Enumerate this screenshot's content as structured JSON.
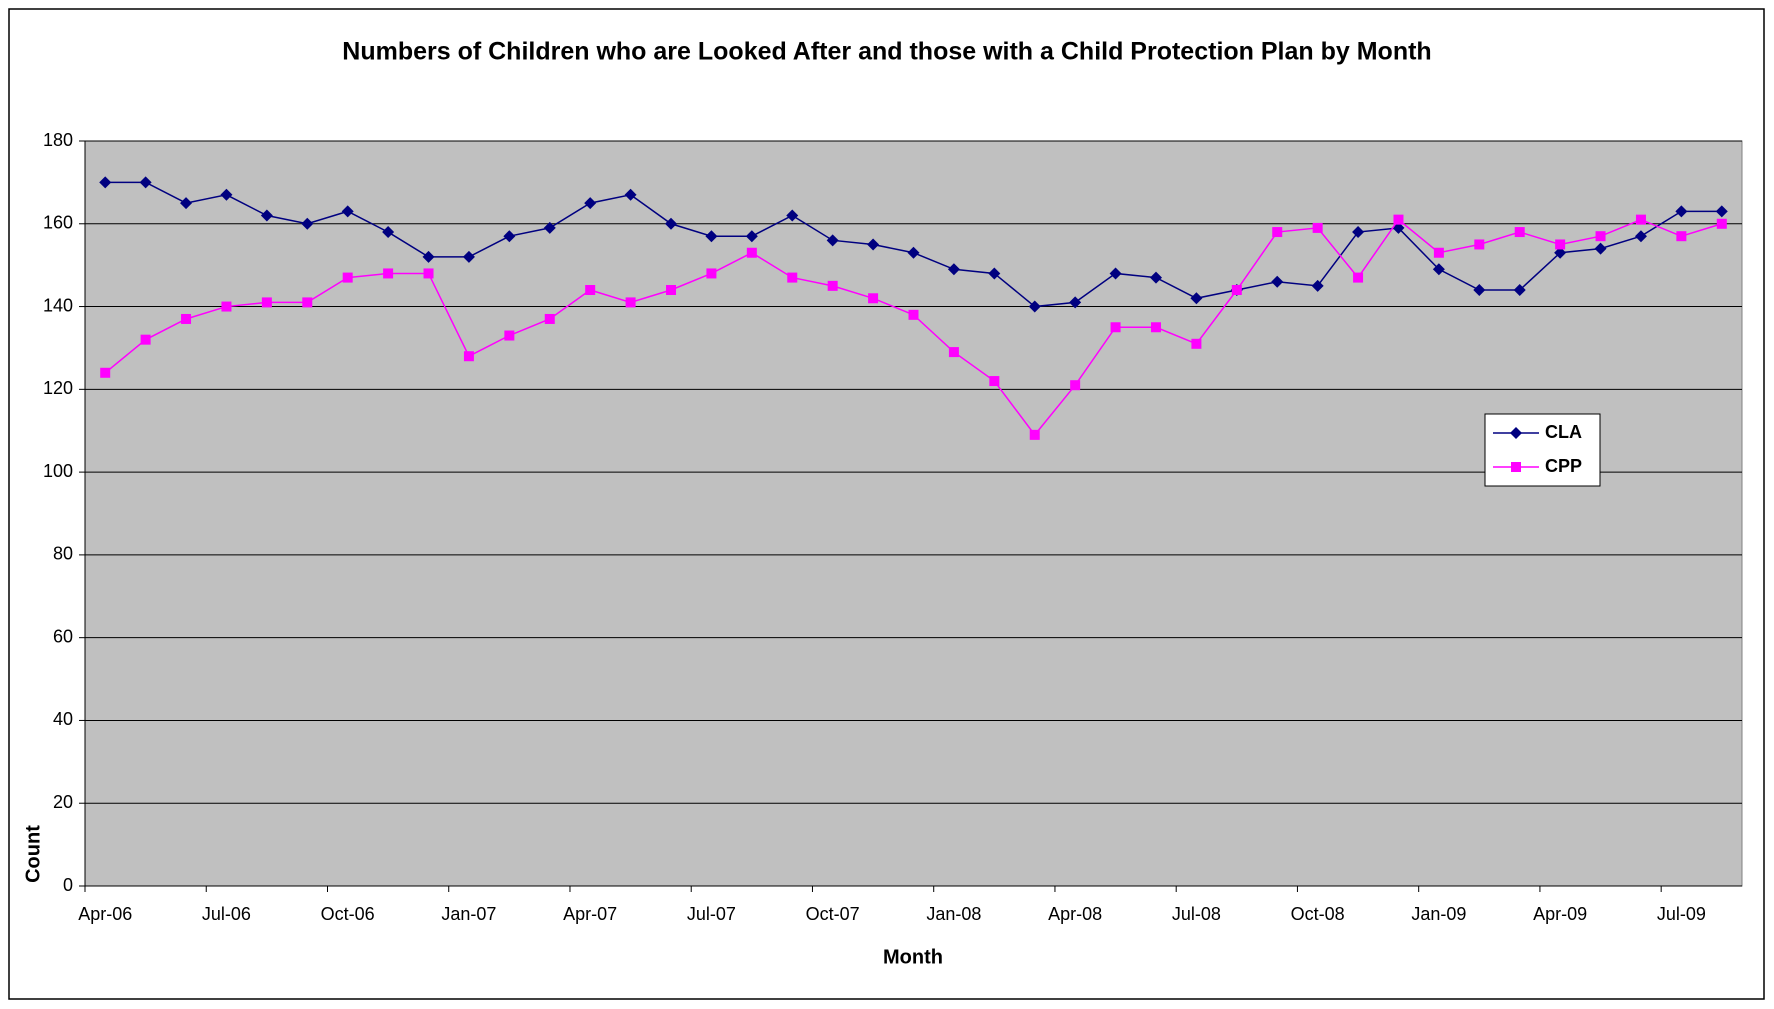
{
  "chart_data": {
    "type": "line",
    "title": "Numbers of Children who are Looked After and those with a Child Protection Plan by Month",
    "xlabel": "Month",
    "ylabel": "Count",
    "categories": [
      "Apr-06",
      null,
      null,
      "Jul-06",
      null,
      null,
      "Oct-06",
      null,
      null,
      "Jan-07",
      null,
      null,
      "Apr-07",
      null,
      null,
      "Jul-07",
      null,
      null,
      "Oct-07",
      null,
      null,
      "Jan-08",
      null,
      null,
      "Apr-08",
      null,
      null,
      "Jul-08",
      null,
      null,
      "Oct-08",
      null,
      null,
      "Jan-09",
      null,
      null,
      "Apr-09",
      null,
      null,
      "Jul-09",
      null
    ],
    "series": [
      {
        "name": "CLA",
        "color": "#000080",
        "marker": "diamond",
        "values": [
          170,
          170,
          165,
          167,
          162,
          160,
          163,
          158,
          152,
          152,
          157,
          159,
          165,
          167,
          160,
          157,
          157,
          162,
          156,
          155,
          153,
          149,
          148,
          140,
          141,
          148,
          147,
          142,
          144,
          146,
          145,
          158,
          159,
          149,
          144,
          144,
          153,
          154,
          157,
          163,
          163
        ]
      },
      {
        "name": "CPP",
        "color": "#ff00ff",
        "marker": "square",
        "values": [
          124,
          132,
          137,
          140,
          141,
          141,
          147,
          148,
          148,
          128,
          133,
          137,
          144,
          141,
          144,
          148,
          153,
          147,
          145,
          142,
          138,
          129,
          122,
          109,
          121,
          135,
          135,
          131,
          144,
          158,
          159,
          147,
          161,
          153,
          155,
          158,
          155,
          157,
          161,
          157,
          160
        ]
      }
    ],
    "ylim": [
      0,
      180
    ],
    "yticks": [
      0,
      20,
      40,
      60,
      80,
      100,
      120,
      140,
      160,
      180
    ],
    "grid": true,
    "background": "#c0c0c0"
  }
}
